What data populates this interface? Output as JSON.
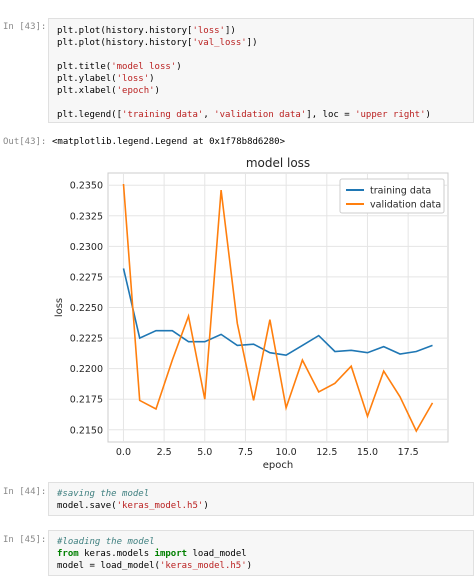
{
  "cells": [
    {
      "prompt": "In [43]:",
      "lines": [
        [
          "plt.plot(history.history[",
          {
            "s": "'loss'"
          },
          "])"
        ],
        [
          "plt.plot(history.history[",
          {
            "s": "'val_loss'"
          },
          "])"
        ],
        [
          ""
        ],
        [
          "plt.title(",
          {
            "s": "'model loss'"
          },
          ")"
        ],
        [
          "plt.ylabel(",
          {
            "s": "'loss'"
          },
          ")"
        ],
        [
          "plt.xlabel(",
          {
            "s": "'epoch'"
          },
          ")"
        ],
        [
          ""
        ],
        [
          "plt.legend([",
          {
            "s": "'training data'"
          },
          ", ",
          {
            "s": "'validation data'"
          },
          "], loc = ",
          {
            "s": "'upper right'"
          },
          ")"
        ]
      ]
    },
    {
      "prompt": "In [44]:",
      "lines": [
        [
          {
            "c": "#saving the model"
          }
        ],
        [
          "model.save(",
          {
            "s": "'keras_model.h5'"
          },
          ")"
        ]
      ]
    },
    {
      "prompt": "In [45]:",
      "lines": [
        [
          {
            "c": "#loading the model"
          }
        ],
        [
          {
            "k": "from"
          },
          " keras.models ",
          {
            "k": "import"
          },
          " load_model"
        ],
        [
          "model = load_model(",
          {
            "s": "'keras_model.h5'"
          },
          ")"
        ]
      ]
    }
  ],
  "output": {
    "prompt": "Out[43]:",
    "text": "<matplotlib.legend.Legend at 0x1f78b8d6280>"
  },
  "chart_data": {
    "type": "line",
    "title": "model loss",
    "xlabel": "epoch",
    "ylabel": "loss",
    "x": [
      0,
      1,
      2,
      3,
      4,
      5,
      6,
      7,
      8,
      9,
      10,
      11,
      12,
      13,
      14,
      15,
      16,
      17,
      18,
      19
    ],
    "series": [
      {
        "name": "training data",
        "color": "#1f77b4",
        "values": [
          0.2282,
          0.2225,
          0.2231,
          0.2231,
          0.2222,
          0.2222,
          0.2228,
          0.2219,
          0.222,
          0.2213,
          0.2211,
          0.2219,
          0.2227,
          0.2214,
          0.2215,
          0.2213,
          0.2218,
          0.2212,
          0.2214,
          0.2219
        ]
      },
      {
        "name": "validation data",
        "color": "#ff7f0e",
        "values": [
          0.2351,
          0.2174,
          0.2167,
          0.2207,
          0.2243,
          0.2175,
          0.2346,
          0.2237,
          0.2174,
          0.224,
          0.2168,
          0.2207,
          0.2181,
          0.2188,
          0.2202,
          0.2161,
          0.2198,
          0.2177,
          0.2149,
          0.2172
        ]
      }
    ],
    "xlim": [
      -0.95,
      19.95
    ],
    "ylim": [
      0.214,
      0.236
    ],
    "xticks": [
      "0.0",
      "2.5",
      "5.0",
      "7.5",
      "10.0",
      "12.5",
      "15.0",
      "17.5"
    ],
    "xtick_values": [
      0,
      2.5,
      5,
      7.5,
      10,
      12.5,
      15,
      17.5
    ],
    "yticks": [
      "0.2150",
      "0.2175",
      "0.2200",
      "0.2225",
      "0.2250",
      "0.2275",
      "0.2300",
      "0.2325",
      "0.2350"
    ],
    "ytick_values": [
      0.215,
      0.2175,
      0.22,
      0.2225,
      0.225,
      0.2275,
      0.23,
      0.2325,
      0.235
    ],
    "grid": true,
    "legend": "upper right"
  }
}
